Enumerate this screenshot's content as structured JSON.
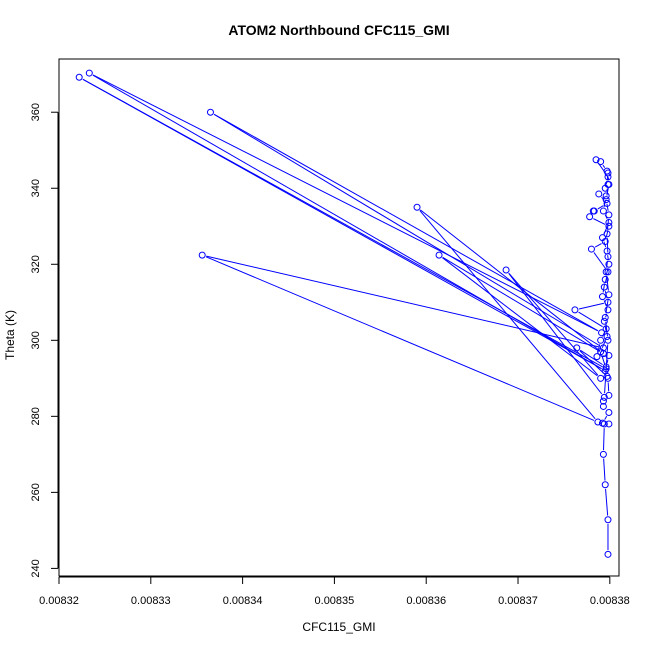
{
  "chart_data": {
    "type": "line",
    "title": "ATOM2 Northbound CFC115_GMI",
    "xlabel": "CFC115_GMI",
    "ylabel": "Theta (K)",
    "xlim": [
      0.00832,
      0.008381
    ],
    "ylim": [
      238,
      374
    ],
    "x_ticks": [
      0.00832,
      0.00833,
      0.00834,
      0.00835,
      0.00836,
      0.00837,
      0.00838
    ],
    "x_tick_labels": [
      "0.00832",
      "0.00833",
      "0.00834",
      "0.00835",
      "0.00836",
      "0.00837",
      "0.00838"
    ],
    "y_ticks": [
      240,
      260,
      280,
      300,
      320,
      340,
      360
    ],
    "y_tick_labels": [
      "240",
      "260",
      "280",
      "300",
      "320",
      "340",
      "360"
    ],
    "grid": false,
    "legend": "none",
    "series": [
      {
        "color": "#0000ff",
        "marker": "open-circle",
        "points": [
          [
            0.0083798,
            243.7
          ],
          [
            0.0083798,
            252.8
          ],
          [
            0.0083795,
            262.0
          ],
          [
            0.0083793,
            270.0
          ],
          [
            0.0083794,
            278.0
          ],
          [
            0.0083799,
            278.0
          ],
          [
            0.0083792,
            278.2
          ],
          [
            0.0083799,
            281.0
          ],
          [
            0.0083793,
            282.6
          ],
          [
            0.0083793,
            284.0
          ],
          [
            0.0083799,
            285.5
          ],
          [
            0.0083798,
            290.0
          ],
          [
            0.0083797,
            290.5
          ],
          [
            0.0083764,
            298.0
          ],
          [
            0.0083796,
            293.0
          ],
          [
            0.0083799,
            296.0
          ],
          [
            0.0083786,
            295.7
          ],
          [
            0.008379,
            300.0
          ],
          [
            0.0083796,
            303.0
          ],
          [
            0.0083762,
            308.0
          ],
          [
            0.0083798,
            310.0
          ],
          [
            0.0083794,
            314.0
          ],
          [
            0.0083798,
            318.0
          ],
          [
            0.008378,
            324.0
          ],
          [
            0.0083795,
            326.0
          ],
          [
            0.0083799,
            330.0
          ],
          [
            0.0083778,
            332.5
          ],
          [
            0.0083782,
            334.0
          ],
          [
            0.0083783,
            334.0
          ],
          [
            0.0083797,
            336.0
          ],
          [
            0.0083788,
            338.5
          ],
          [
            0.0083795,
            340.0
          ],
          [
            0.0083798,
            343.0
          ],
          [
            0.0083785,
            347.5
          ],
          [
            0.008379,
            347.0
          ],
          [
            0.0083797,
            344.5
          ],
          [
            0.0083798,
            341.0
          ],
          [
            0.0083796,
            338.0
          ],
          [
            0.0083793,
            334.0
          ],
          [
            0.0083799,
            331.0
          ],
          [
            0.0083792,
            327.0
          ],
          [
            0.0083797,
            323.5
          ],
          [
            0.0083799,
            320.0
          ],
          [
            0.0083795,
            316.0
          ],
          [
            0.0083792,
            311.5
          ],
          [
            0.0083798,
            308.0
          ],
          [
            0.0083794,
            305.0
          ],
          [
            0.0083797,
            301.0
          ],
          [
            0.008379,
            297.0
          ],
          [
            0.0083796,
            292.5
          ],
          [
            0.0083222,
            369.2
          ],
          [
            0.0083795,
            292.0
          ],
          [
            0.0083233,
            370.3
          ],
          [
            0.0083791,
            302.0
          ],
          [
            0.0083365,
            360.0
          ],
          [
            0.0083793,
            298.0
          ],
          [
            0.0083356,
            322.4
          ],
          [
            0.0083787,
            278.5
          ],
          [
            0.008359,
            335.0
          ],
          [
            0.0083793,
            296.5
          ],
          [
            0.0083614,
            322.4
          ],
          [
            0.008379,
            290.0
          ],
          [
            0.0083687,
            318.5
          ],
          [
            0.0083794,
            285.0
          ],
          [
            0.0083798,
            300.0
          ],
          [
            0.0083795,
            306.0
          ],
          [
            0.0083799,
            312.0
          ],
          [
            0.0083796,
            318.0
          ],
          [
            0.0083798,
            322.0
          ],
          [
            0.0083797,
            328.0
          ],
          [
            0.0083799,
            333.0
          ],
          [
            0.0083796,
            337.0
          ],
          [
            0.0083799,
            341.0
          ],
          [
            0.0083798,
            344.0
          ]
        ]
      }
    ]
  }
}
